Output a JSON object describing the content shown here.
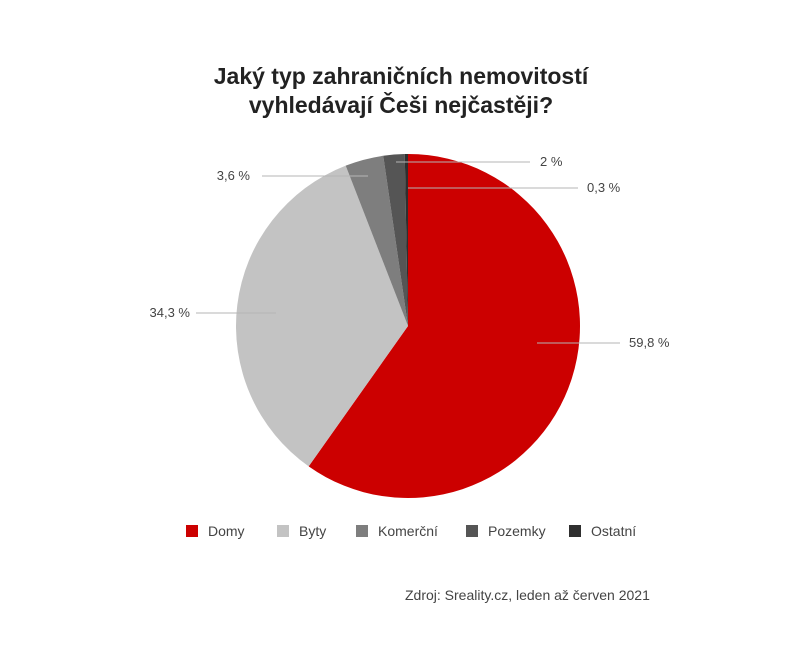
{
  "chart_data": {
    "type": "pie",
    "title": "Jaký typ zahraničních nemovitostí vyhledávají Češi nejčastěji?",
    "title_lines": [
      "Jaký typ zahraničních nemovitostí",
      "vyhledávají Češi nejčastěji?"
    ],
    "categories": [
      "Domy",
      "Byty",
      "Komerční",
      "Pozemky",
      "Ostatní"
    ],
    "values": [
      59.8,
      34.3,
      3.6,
      2,
      0.3
    ],
    "value_labels": [
      "59,8 %",
      "34,3 %",
      "3,6 %",
      "2 %",
      "0,3 %"
    ],
    "colors": [
      "#cc0000",
      "#c3c3c3",
      "#7e7e7e",
      "#555555",
      "#2f2f2f"
    ],
    "start_angle": "12 o'clock",
    "direction": "clockwise",
    "legend_position": "bottom",
    "source": "Zdroj: Sreality.cz, leden až červen 2021"
  }
}
